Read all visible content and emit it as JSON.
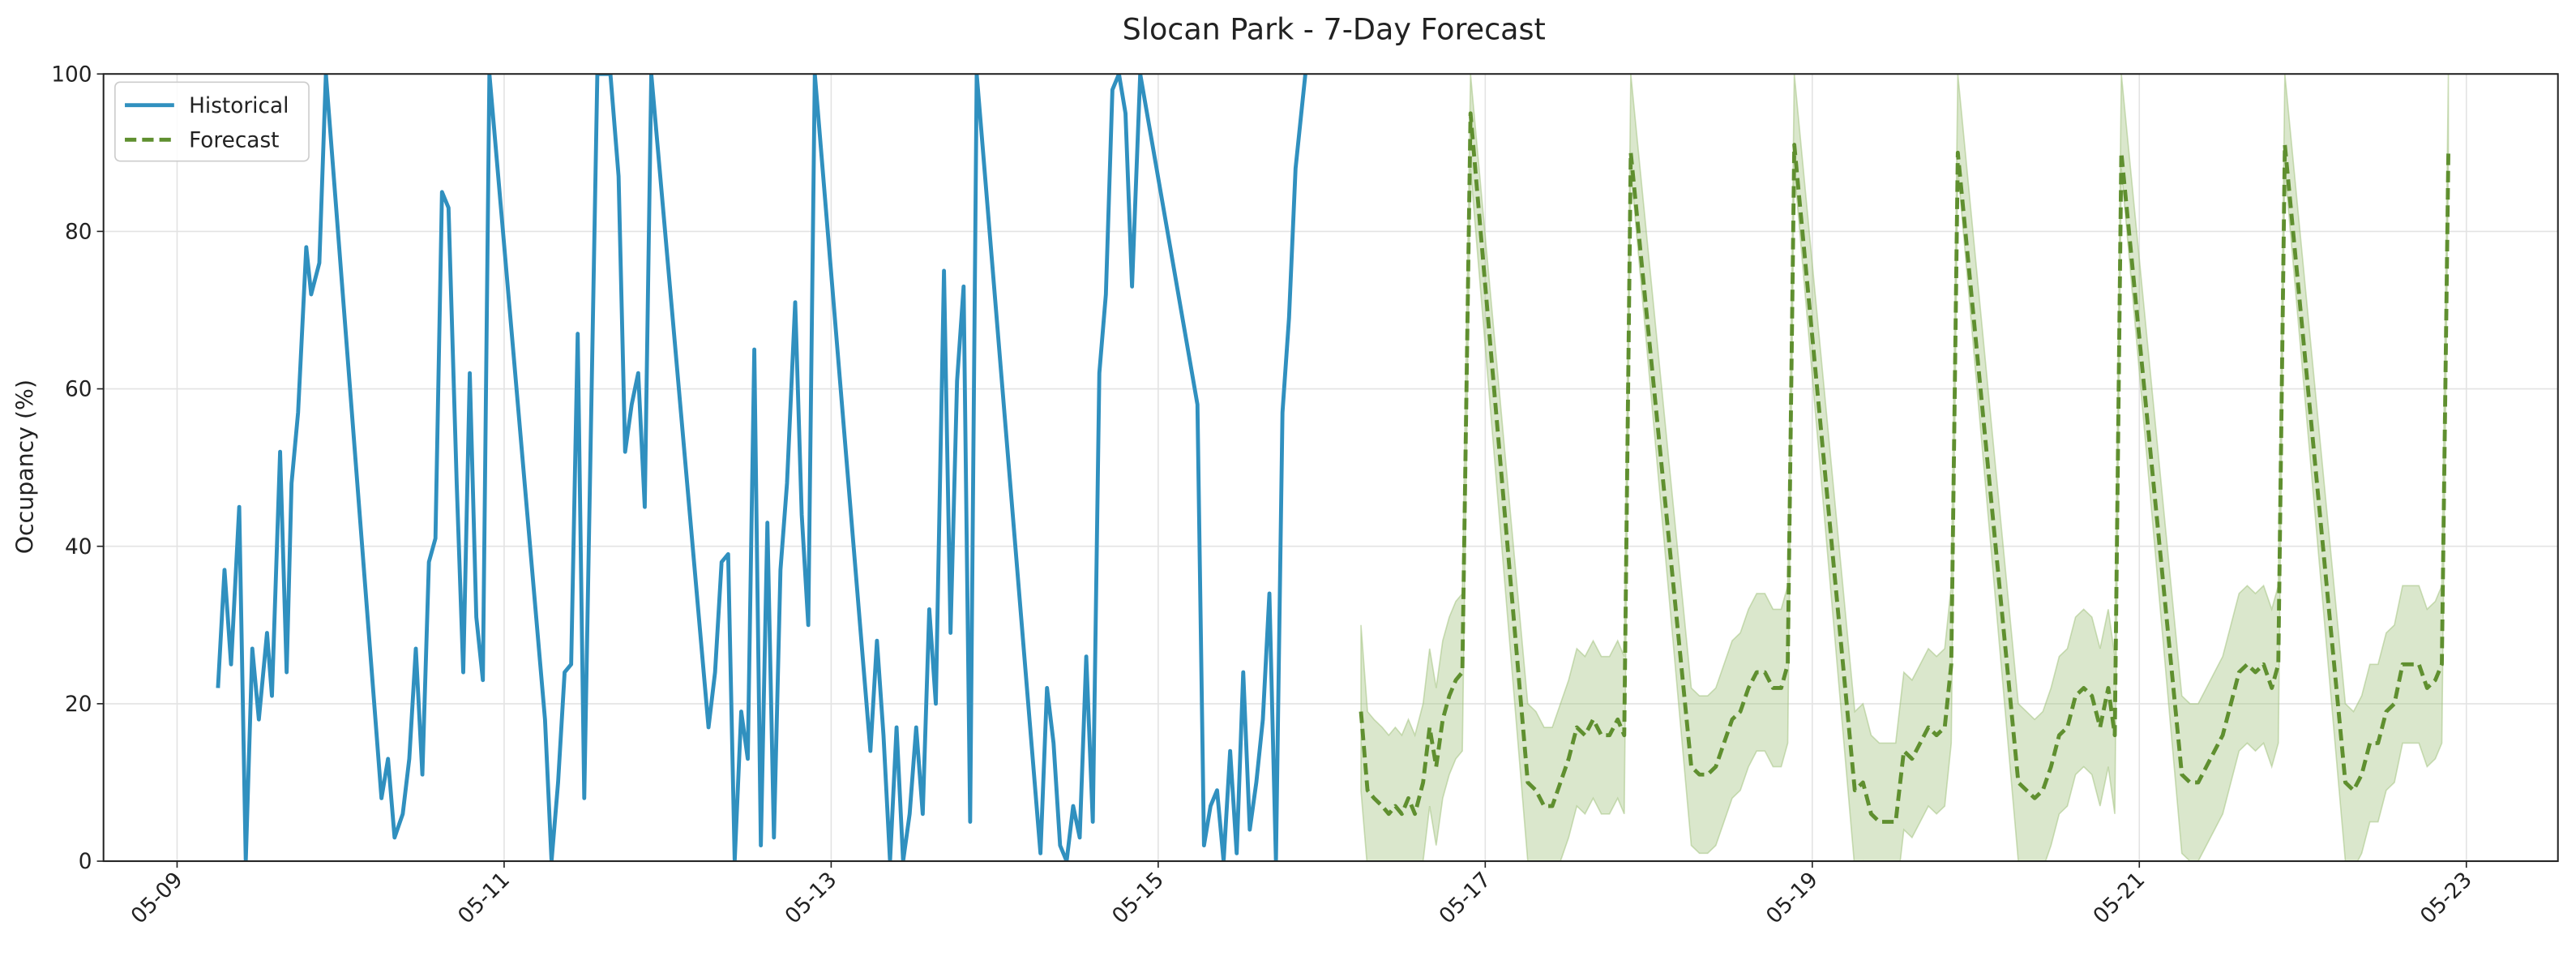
{
  "chart_data": {
    "type": "line",
    "title": "Slocan Park - 7-Day Forecast",
    "y_label": "Occupancy (%)",
    "xlim": [
      8.55,
      23.56
    ],
    "xticks": [
      {
        "value": 9,
        "label": "05-09"
      },
      {
        "value": 11,
        "label": "05-11"
      },
      {
        "value": 13,
        "label": "05-13"
      },
      {
        "value": 15,
        "label": "05-15"
      },
      {
        "value": 17,
        "label": "05-17"
      },
      {
        "value": 19,
        "label": "05-19"
      },
      {
        "value": 21,
        "label": "05-21"
      },
      {
        "value": 23,
        "label": "05-23"
      }
    ],
    "ylim": [
      0,
      100
    ],
    "yticks": [
      0,
      20,
      40,
      60,
      80,
      100
    ],
    "grid": true,
    "legend": "upper left",
    "series": [
      {
        "name": "Historical",
        "color": "#3090bf",
        "style": "solid",
        "x": [
          9.25,
          9.29,
          9.33,
          9.38,
          9.42,
          9.46,
          9.5,
          9.55,
          9.58,
          9.63,
          9.67,
          9.7,
          9.74,
          9.79,
          9.82,
          9.87,
          9.91,
          10.25,
          10.29,
          10.33,
          10.38,
          10.42,
          10.46,
          10.5,
          10.54,
          10.58,
          10.62,
          10.66,
          10.71,
          10.75,
          10.79,
          10.83,
          10.87,
          10.91,
          11.25,
          11.29,
          11.33,
          11.37,
          11.41,
          11.45,
          11.49,
          11.57,
          11.65,
          11.7,
          11.74,
          11.78,
          11.82,
          11.86,
          11.9,
          12.25,
          12.29,
          12.33,
          12.37,
          12.41,
          12.45,
          12.49,
          12.53,
          12.57,
          12.61,
          12.65,
          12.69,
          12.73,
          12.78,
          12.82,
          12.86,
          12.9,
          13.24,
          13.28,
          13.32,
          13.36,
          13.4,
          13.44,
          13.48,
          13.52,
          13.56,
          13.6,
          13.64,
          13.69,
          13.73,
          13.77,
          13.81,
          13.85,
          13.89,
          14.28,
          14.32,
          14.36,
          14.4,
          14.44,
          14.48,
          14.52,
          14.56,
          14.6,
          14.64,
          14.68,
          14.72,
          14.76,
          14.8,
          14.84,
          14.89,
          15.24,
          15.28,
          15.32,
          15.36,
          15.4,
          15.44,
          15.48,
          15.52,
          15.56,
          15.6,
          15.64,
          15.68,
          15.72,
          15.76,
          15.8,
          15.84,
          15.9
        ],
        "values": [
          22,
          37,
          25,
          45,
          0,
          27,
          18,
          29,
          21,
          52,
          24,
          48,
          57,
          78,
          72,
          76,
          100,
          8,
          13,
          3,
          6,
          13,
          27,
          11,
          38,
          41,
          85,
          83,
          48,
          24,
          62,
          31,
          23,
          100,
          18,
          0,
          10,
          24,
          25,
          67,
          8,
          100,
          100,
          87,
          52,
          58,
          62,
          45,
          100,
          17,
          24,
          38,
          39,
          0,
          19,
          13,
          65,
          2,
          43,
          3,
          37,
          48,
          71,
          44,
          30,
          100,
          14,
          28,
          16,
          0,
          17,
          0,
          6,
          17,
          6,
          32,
          20,
          75,
          29,
          61,
          73,
          5,
          100,
          1,
          22,
          15,
          2,
          0,
          7,
          3,
          26,
          5,
          62,
          72,
          98,
          100,
          95,
          73,
          100,
          58,
          2,
          7,
          9,
          0,
          14,
          1,
          24,
          4,
          10,
          18,
          34,
          0,
          57,
          69,
          88,
          100
        ]
      },
      {
        "name": "Forecast",
        "color": "#5f8f2f",
        "style": "dashed",
        "band_color": "#9dbf78",
        "x": [
          16.24,
          16.28,
          16.32,
          16.37,
          16.41,
          16.45,
          16.49,
          16.53,
          16.57,
          16.62,
          16.66,
          16.7,
          16.74,
          16.78,
          16.82,
          16.86,
          16.91,
          17.26,
          17.31,
          17.36,
          17.41,
          17.46,
          17.51,
          17.56,
          17.61,
          17.66,
          17.71,
          17.76,
          17.81,
          17.85,
          17.89,
          18.26,
          18.31,
          18.36,
          18.41,
          18.46,
          18.51,
          18.56,
          18.61,
          18.66,
          18.71,
          18.76,
          18.81,
          18.85,
          18.89,
          19.26,
          19.31,
          19.36,
          19.41,
          19.46,
          19.51,
          19.56,
          19.61,
          19.66,
          19.71,
          19.76,
          19.81,
          19.85,
          19.89,
          20.26,
          20.31,
          20.36,
          20.41,
          20.46,
          20.51,
          20.56,
          20.61,
          20.66,
          20.71,
          20.76,
          20.81,
          20.85,
          20.89,
          21.26,
          21.31,
          21.36,
          21.41,
          21.46,
          21.51,
          21.56,
          21.61,
          21.66,
          21.71,
          21.76,
          21.81,
          21.85,
          21.89,
          22.26,
          22.31,
          22.36,
          22.41,
          22.46,
          22.51,
          22.56,
          22.61,
          22.66,
          22.71,
          22.76,
          22.81,
          22.85,
          22.89
        ],
        "values": [
          19,
          9,
          8,
          7,
          6,
          7,
          6,
          8,
          6,
          10,
          17,
          12,
          18,
          21,
          23,
          24,
          95,
          10,
          9,
          7,
          7,
          10,
          13,
          17,
          16,
          18,
          16,
          16,
          18,
          16,
          90,
          12,
          11,
          11,
          12,
          15,
          18,
          19,
          22,
          24,
          24,
          22,
          22,
          25,
          91,
          9,
          10,
          6,
          5,
          5,
          5,
          14,
          13,
          15,
          17,
          16,
          17,
          25,
          90,
          10,
          9,
          8,
          9,
          12,
          16,
          17,
          21,
          22,
          21,
          17,
          22,
          16,
          90,
          11,
          10,
          10,
          12,
          14,
          16,
          20,
          24,
          25,
          24,
          25,
          22,
          25,
          91,
          10,
          9,
          11,
          15,
          15,
          19,
          20,
          25,
          25,
          25,
          22,
          23,
          25,
          90
        ],
        "upper": [
          30,
          19,
          18,
          17,
          16,
          17,
          16,
          18,
          16,
          20,
          27,
          22,
          28,
          31,
          33,
          34,
          100,
          20,
          19,
          17,
          17,
          20,
          23,
          27,
          26,
          28,
          26,
          26,
          28,
          26,
          100,
          22,
          21,
          21,
          22,
          25,
          28,
          29,
          32,
          34,
          34,
          32,
          32,
          35,
          100,
          19,
          20,
          16,
          15,
          15,
          15,
          24,
          23,
          25,
          27,
          26,
          27,
          35,
          100,
          20,
          19,
          18,
          19,
          22,
          26,
          27,
          31,
          32,
          31,
          27,
          32,
          26,
          100,
          21,
          20,
          20,
          22,
          24,
          26,
          30,
          34,
          35,
          34,
          35,
          32,
          35,
          100,
          20,
          19,
          21,
          25,
          25,
          29,
          30,
          35,
          35,
          35,
          32,
          33,
          35,
          100
        ],
        "lower": [
          9,
          -1,
          -2,
          -3,
          -4,
          -3,
          -4,
          -2,
          -4,
          0,
          7,
          2,
          8,
          11,
          13,
          14,
          88,
          0,
          -1,
          -3,
          -3,
          0,
          3,
          7,
          6,
          8,
          6,
          6,
          8,
          6,
          88,
          2,
          1,
          1,
          2,
          5,
          8,
          9,
          12,
          14,
          14,
          12,
          12,
          15,
          88,
          -1,
          0,
          -4,
          -5,
          -5,
          -5,
          4,
          3,
          5,
          7,
          6,
          7,
          15,
          88,
          0,
          -1,
          -2,
          -1,
          2,
          6,
          7,
          11,
          12,
          11,
          7,
          12,
          6,
          88,
          1,
          0,
          0,
          2,
          4,
          6,
          10,
          14,
          15,
          14,
          15,
          12,
          15,
          88,
          0,
          -1,
          1,
          5,
          5,
          9,
          10,
          15,
          15,
          15,
          12,
          13,
          15,
          88
        ]
      }
    ]
  }
}
